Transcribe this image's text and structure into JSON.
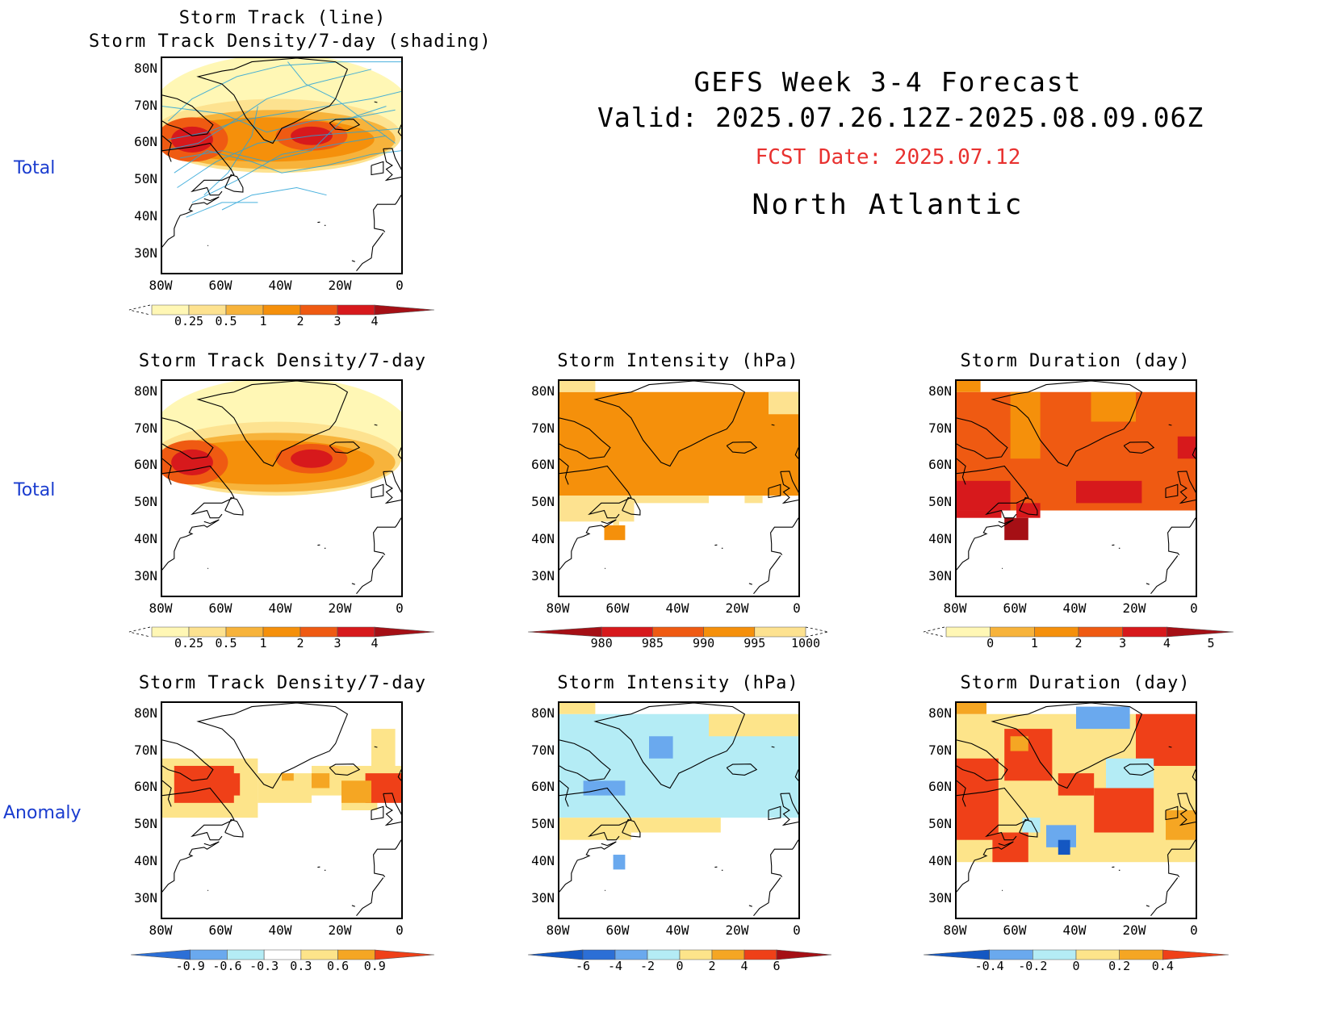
{
  "header": {
    "title": "GEFS Week 3-4 Forecast",
    "valid": "Valid: 2025.07.26.12Z-2025.08.09.06Z",
    "fcst_date": "FCST Date: 2025.07.12",
    "region": "North Atlantic",
    "fcst_color": "#e8312f"
  },
  "row_labels": [
    "Total",
    "Total",
    "Anomaly"
  ],
  "axes": {
    "lat_ticks": [
      "80N",
      "70N",
      "60N",
      "50N",
      "40N",
      "30N"
    ],
    "lon_ticks": [
      "80W",
      "60W",
      "40W",
      "20W",
      "0"
    ]
  },
  "panels": {
    "track": {
      "title_line1": "Storm Track (line)",
      "title_line2": "Storm Track Density/7-day (shading)"
    },
    "density": {
      "title": "Storm Track Density/7-day"
    },
    "intensity": {
      "title": "Storm Intensity (hPa)"
    },
    "duration": {
      "title": "Storm Duration (day)"
    },
    "density_anom": {
      "title": "Storm Track Density/7-day"
    },
    "intensity_anom": {
      "title": "Storm Intensity (hPa)"
    },
    "duration_anom": {
      "title": "Storm Duration (day)"
    }
  },
  "colorbars": {
    "density": {
      "labels": [
        "0.25",
        "0.5",
        "1",
        "2",
        "3",
        "4"
      ],
      "colors": [
        "#fff7b5",
        "#fde290",
        "#f7b33b",
        "#f5900b",
        "#ef5a12",
        "#d7191c",
        "#a50f15"
      ]
    },
    "intensity": {
      "labels": [
        "980",
        "985",
        "990",
        "995",
        "1000"
      ],
      "colors": [
        "#a50f15",
        "#d7191c",
        "#ef5a12",
        "#f5900b",
        "#fde290"
      ]
    },
    "duration": {
      "labels": [
        "0",
        "1",
        "2",
        "3",
        "4",
        "5"
      ],
      "colors": [
        "#fff7b5",
        "#f7b33b",
        "#f5900b",
        "#ef5a12",
        "#d7191c",
        "#a50f15"
      ]
    },
    "density_anom": {
      "labels": [
        "-0.9",
        "-0.6",
        "-0.3",
        "0.3",
        "0.6",
        "0.9"
      ],
      "colors": [
        "#2c6fd6",
        "#6aa9ee",
        "#b4ecf5",
        "#ffffff",
        "#fde48a",
        "#f5a623",
        "#ef4018"
      ]
    },
    "intensity_anom": {
      "labels": [
        "-6",
        "-4",
        "-2",
        "0",
        "2",
        "4",
        "6"
      ],
      "colors": [
        "#1457c2",
        "#2c6fd6",
        "#6aa9ee",
        "#b4ecf5",
        "#fde48a",
        "#f5a623",
        "#ef4018",
        "#a50f15"
      ]
    },
    "duration_anom": {
      "labels": [
        "-0.4",
        "-0.2",
        "0",
        "0.2",
        "0.4"
      ],
      "colors": [
        "#1457c2",
        "#6aa9ee",
        "#b4ecf5",
        "#fde48a",
        "#f5a623",
        "#ef4018"
      ]
    }
  }
}
